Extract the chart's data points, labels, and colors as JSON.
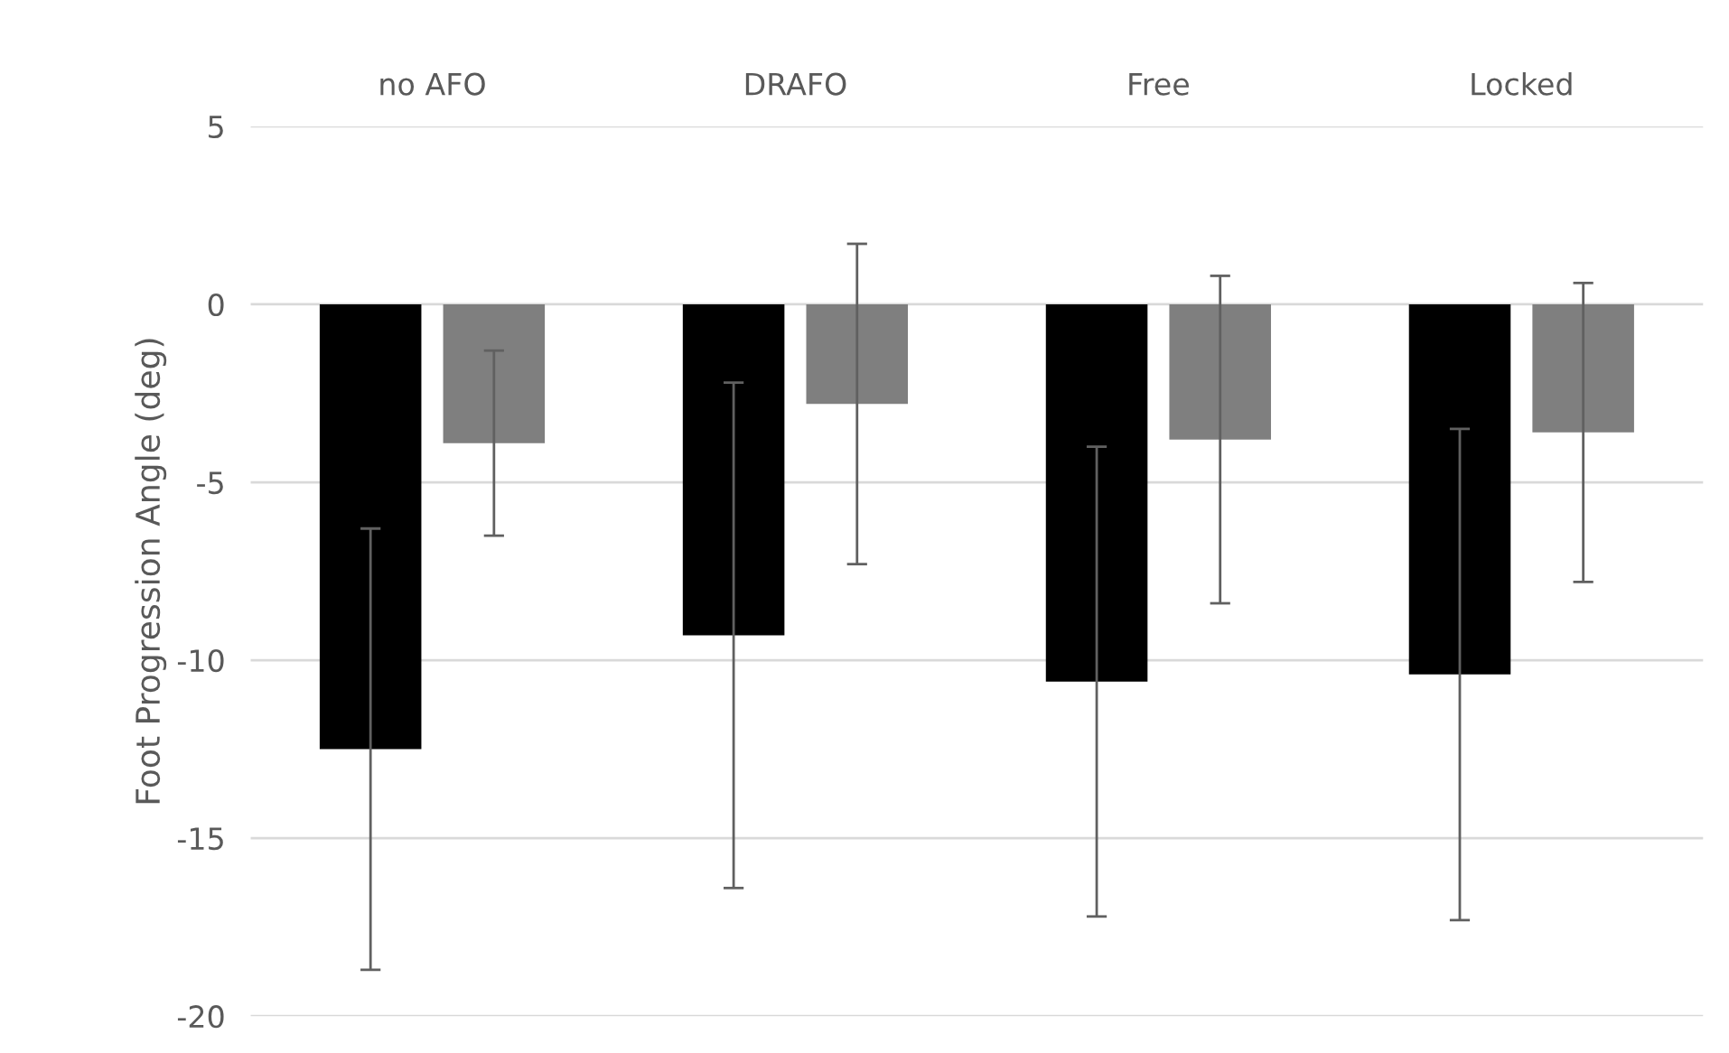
{
  "chart_data": {
    "type": "bar",
    "ylabel": "Foot Progression Angle (deg)",
    "categories": [
      "no AFO",
      "DRAFO",
      "Free",
      "Locked"
    ],
    "series": [
      {
        "color": "#000000",
        "values": [
          -12.5,
          -9.3,
          -10.6,
          -10.4
        ],
        "errors": [
          6.2,
          7.1,
          6.6,
          6.9
        ]
      },
      {
        "color": "#7f7f7f",
        "values": [
          -3.9,
          -2.8,
          -3.8,
          -3.6
        ],
        "errors": [
          2.6,
          4.5,
          4.6,
          4.2
        ]
      }
    ],
    "ylim": [
      -20,
      5
    ],
    "yticks": [
      -20,
      -15,
      -10,
      -5,
      0,
      5
    ],
    "grid": "y"
  }
}
